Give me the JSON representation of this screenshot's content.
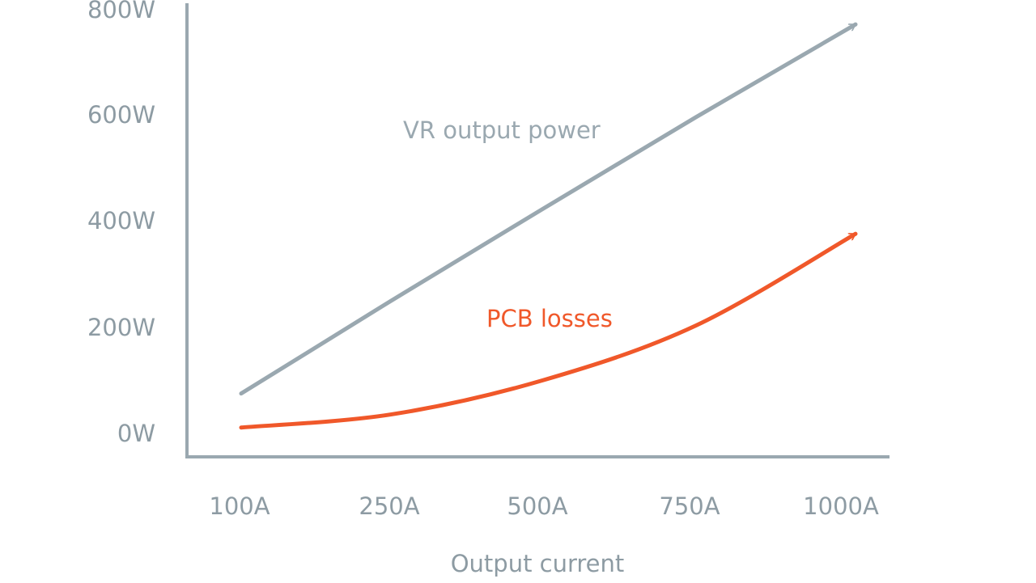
{
  "chart_data": {
    "type": "line",
    "xlabel": "Output current",
    "ylabel": "",
    "x_ticks": [
      "100A",
      "250A",
      "500A",
      "750A",
      "1000A"
    ],
    "y_ticks": [
      "0W",
      "200W",
      "400W",
      "600W",
      "800W"
    ],
    "ylim": [
      0,
      800
    ],
    "grid": false,
    "legend": "none",
    "series": [
      {
        "name": "VR output power",
        "color": "#9aa8b0",
        "x": [
          "100A",
          "250A",
          "500A",
          "750A",
          "1000A"
        ],
        "values": [
          70,
          247,
          422,
          598,
          775
        ]
      },
      {
        "name": "PCB losses",
        "color": "#f0582a",
        "x": [
          "100A",
          "250A",
          "500A",
          "750A",
          "1000A"
        ],
        "values": [
          5,
          30,
          95,
          200,
          375
        ]
      }
    ]
  }
}
